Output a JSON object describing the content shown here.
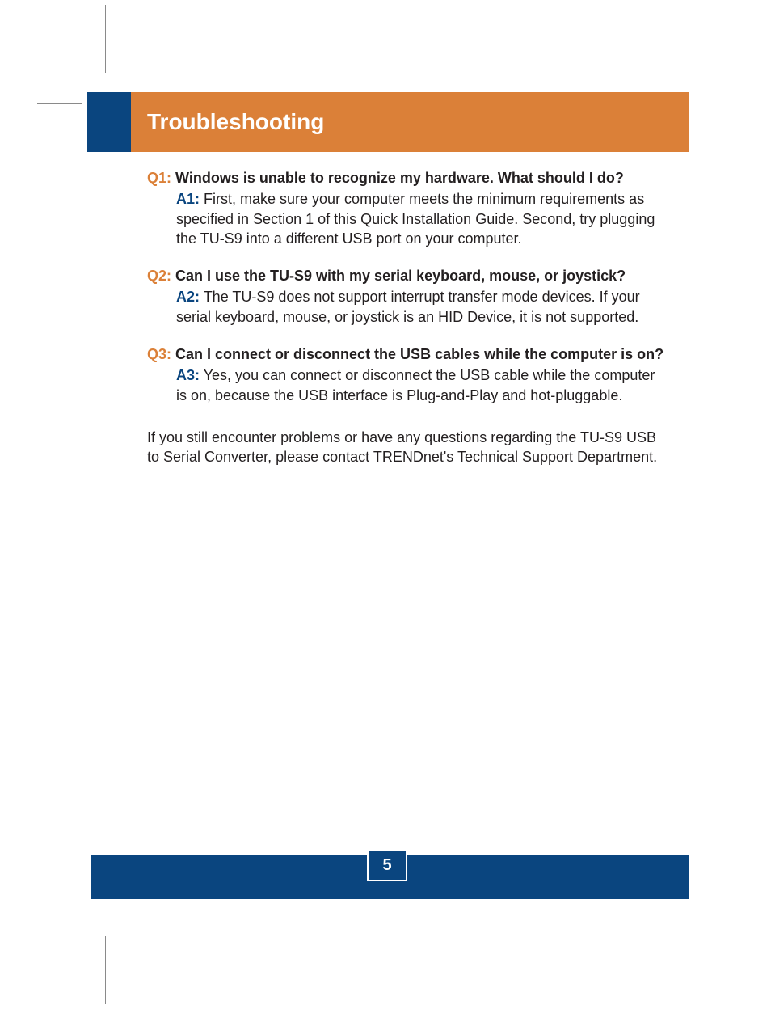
{
  "colors": {
    "orange": "#db8038",
    "blue": "#0a457f",
    "text": "#231f20",
    "white": "#ffffff",
    "cropmark": "#8a8a8a"
  },
  "header": {
    "title": "Troubleshooting"
  },
  "qa": [
    {
      "q_label": "Q1:",
      "question": " Windows is unable to recognize my hardware. What should I do?",
      "a_label": "A1:",
      "answer": " First, make sure your computer meets the minimum requirements as specified in Section 1 of this Quick Installation Guide.  Second, try plugging the TU-S9 into a different USB port on your computer."
    },
    {
      "q_label": "Q2:",
      "question": " Can I use the TU-S9 with my serial keyboard, mouse, or joystick?",
      "a_label": "A2:",
      "answer": " The TU-S9 does not support interrupt transfer mode devices.  If your serial keyboard, mouse, or joystick is an HID Device, it is not supported."
    },
    {
      "q_label": "Q3:",
      "question": " Can I connect or disconnect the USB cables while the computer is on?",
      "a_label": "A3:",
      "answer": " Yes, you can connect or disconnect the USB cable while the computer is on, because the USB interface is Plug-and-Play and hot-pluggable."
    }
  ],
  "footer_note": "If you still encounter problems or have any questions regarding the TU-S9 USB to Serial Converter, please contact TRENDnet's Technical Support Department.",
  "page_number": "5",
  "typography": {
    "title_fontsize": 28,
    "body_fontsize": 18,
    "pagenum_fontsize": 20
  }
}
